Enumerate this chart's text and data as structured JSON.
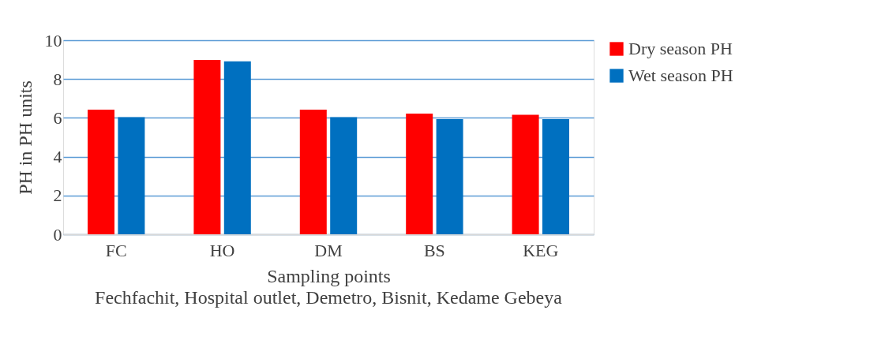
{
  "chart_data": {
    "type": "bar",
    "categories": [
      "FC",
      "HO",
      "DM",
      "BS",
      "KEG"
    ],
    "series": [
      {
        "name": "Dry season PH",
        "color": "#ff0000",
        "values": [
          6.42,
          8.98,
          6.42,
          6.22,
          6.16
        ]
      },
      {
        "name": "Wet season PH",
        "color": "#0070c0",
        "values": [
          6.04,
          8.91,
          6.04,
          5.93,
          5.93
        ]
      }
    ],
    "xlabel": "Sampling points",
    "ylabel": "PH in PH units",
    "ylim": [
      0,
      10
    ],
    "yticks": [
      0,
      2,
      4,
      6,
      8,
      10
    ],
    "grid": "y",
    "legend": "right",
    "annotations": [
      "Fechfachit, Hospital outlet, Demetro, Bisnit, Kedame Gebeya"
    ]
  }
}
